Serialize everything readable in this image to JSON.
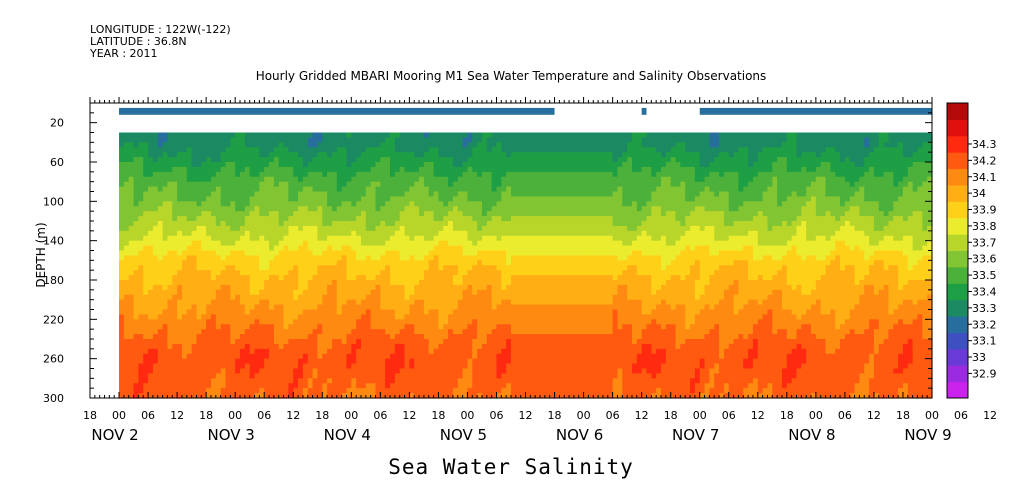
{
  "header": {
    "longitude": "LONGITUDE : 122W(-122)",
    "latitude": "LATITUDE : 36.8N",
    "year": "YEAR : 2011"
  },
  "chart_data": {
    "type": "heatmap",
    "title": "Hourly Gridded MBARI Mooring M1 Sea Water Temperature and Salinity Observations",
    "xlabel": "Sea Water Salinity",
    "ylabel": "DEPTH (m)",
    "x_axis": {
      "hour_ticks": [
        "18",
        "00",
        "06",
        "12",
        "18",
        "00",
        "06",
        "12",
        "18",
        "00",
        "06",
        "12",
        "18",
        "00",
        "06",
        "12",
        "18",
        "00",
        "06",
        "12",
        "18",
        "00",
        "06",
        "12",
        "18",
        "00",
        "06",
        "12",
        "18",
        "00",
        "06",
        "12"
      ],
      "day_labels": [
        "NOV  2",
        "NOV  3",
        "NOV  4",
        "NOV  5",
        "NOV  6",
        "NOV  7",
        "NOV  8",
        "NOV  9"
      ],
      "range_hours_from_nov1_18": [
        0,
        174
      ]
    },
    "y_axis": {
      "range": [
        300,
        0
      ],
      "ticks": [
        "20",
        "60",
        "100",
        "140",
        "180",
        "220",
        "260",
        "300"
      ]
    },
    "colorbar": {
      "levels": [
        32.9,
        33,
        33.1,
        33.2,
        33.3,
        33.4,
        33.5,
        33.6,
        33.7,
        33.8,
        33.9,
        34,
        34.1,
        34.2,
        34.3
      ],
      "tick_labels": [
        "32.9",
        "33",
        "33.1",
        "33.2",
        "33.3",
        "33.4",
        "33.5",
        "33.6",
        "33.7",
        "33.8",
        "33.9",
        "34",
        "34.1",
        "34.2",
        "34.3"
      ],
      "colors": [
        "#cc22ee",
        "#9a2be0",
        "#6a3ad8",
        "#3e4fc2",
        "#276e9e",
        "#1b8a62",
        "#1e9e45",
        "#4cb13a",
        "#82c533",
        "#b8d62a",
        "#ecec2e",
        "#ffd018",
        "#ffae14",
        "#ff8a12",
        "#ff5a10",
        "#ff2a10",
        "#e0100e",
        "#b3090b"
      ]
    },
    "depth_profile_nominal": [
      {
        "depth": 40,
        "value": 33.35
      },
      {
        "depth": 60,
        "value": 33.45
      },
      {
        "depth": 80,
        "value": 33.55
      },
      {
        "depth": 100,
        "value": 33.62
      },
      {
        "depth": 120,
        "value": 33.72
      },
      {
        "depth": 140,
        "value": 33.82
      },
      {
        "depth": 160,
        "value": 33.95
      },
      {
        "depth": 180,
        "value": 34.02
      },
      {
        "depth": 200,
        "value": 34.08
      },
      {
        "depth": 220,
        "value": 34.15
      },
      {
        "depth": 240,
        "value": 34.22
      },
      {
        "depth": 260,
        "value": 34.28
      },
      {
        "depth": 280,
        "value": 34.25
      },
      {
        "depth": 300,
        "value": 34.22
      }
    ],
    "surface_sensor_segments": [
      {
        "start_hour": 6,
        "end_hour": 96,
        "value": 33.3
      },
      {
        "start_hour": 114,
        "end_hour": 115,
        "value": 33.3
      },
      {
        "start_hour": 126,
        "end_hour": 174,
        "value": 33.3
      }
    ],
    "gap_hours": [
      [
        96,
        108
      ],
      [
        108,
        114
      ]
    ]
  }
}
